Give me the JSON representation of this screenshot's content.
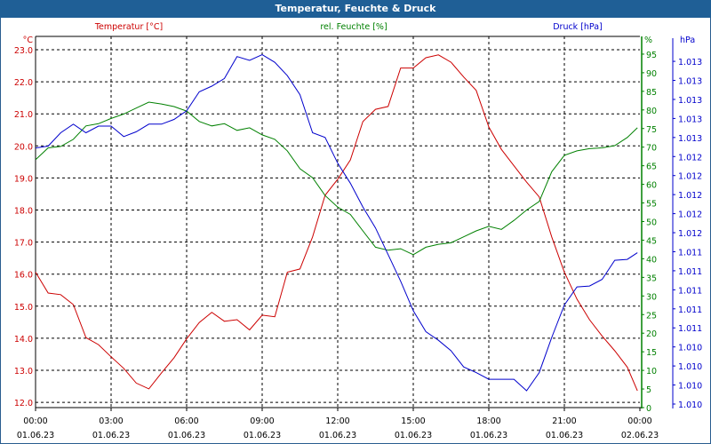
{
  "window_title": "Temperatur, Feuchte & Druck",
  "colors": {
    "temperature": "#cc0000",
    "humidity": "#008000",
    "pressure": "#0000cc",
    "title_bar": "#1f5f96"
  },
  "chart_data": {
    "type": "line",
    "title": "Temperatur, Feuchte & Druck",
    "grid": true,
    "x_hours": [
      0,
      0.5,
      1,
      1.5,
      2,
      2.5,
      3,
      3.5,
      4,
      4.5,
      5,
      5.5,
      6,
      6.5,
      7,
      7.5,
      8,
      8.5,
      9,
      9.5,
      10,
      10.5,
      11,
      11.5,
      12,
      12.5,
      13,
      13.5,
      14,
      14.5,
      15,
      15.5,
      16,
      16.5,
      17,
      17.5,
      18,
      18.5,
      19,
      19.5,
      20,
      20.5,
      21,
      21.5,
      22,
      22.5,
      23,
      23.5,
      23.9
    ],
    "x_ticks": [
      {
        "time": "00:00",
        "date": "01.06.23"
      },
      {
        "time": "03:00",
        "date": "01.06.23"
      },
      {
        "time": "06:00",
        "date": "01.06.23"
      },
      {
        "time": "09:00",
        "date": "01.06.23"
      },
      {
        "time": "12:00",
        "date": "01.06.23"
      },
      {
        "time": "15:00",
        "date": "01.06.23"
      },
      {
        "time": "18:00",
        "date": "01.06.23"
      },
      {
        "time": "21:00",
        "date": "01.06.23"
      },
      {
        "time": "00:00",
        "date": "02.06.23"
      }
    ],
    "series": [
      {
        "name": "Temperatur [°C]",
        "axis": "left",
        "unit": "°C",
        "ylim": [
          12.0,
          23.0
        ],
        "ticks": [
          "23.0",
          "22.0",
          "21.0",
          "20.0",
          "19.0",
          "18.0",
          "17.0",
          "16.0",
          "15.0",
          "14.0",
          "13.0",
          "12.0"
        ],
        "values": [
          16.06,
          15.41,
          15.36,
          15.05,
          14.02,
          13.8,
          13.42,
          13.06,
          12.6,
          12.42,
          12.92,
          13.39,
          13.98,
          14.49,
          14.81,
          14.53,
          14.58,
          14.26,
          14.72,
          14.67,
          16.06,
          16.16,
          17.16,
          18.46,
          18.96,
          19.56,
          20.76,
          21.14,
          21.23,
          22.43,
          22.43,
          22.75,
          22.84,
          22.61,
          22.15,
          21.73,
          20.59,
          19.89,
          19.38,
          18.87,
          18.41,
          17.16,
          16.06,
          15.22,
          14.58,
          14.07,
          13.61,
          13.1,
          12.36
        ]
      },
      {
        "name": "rel. Feuchte [%]",
        "axis": "right",
        "unit": "%",
        "ylim": [
          0,
          95
        ],
        "ticks": [
          "95",
          "90",
          "85",
          "80",
          "75",
          "70",
          "65",
          "60",
          "55",
          "50",
          "45",
          "40",
          "35",
          "30",
          "25",
          "20",
          "15",
          "10",
          "5",
          "0"
        ],
        "values": [
          66.6,
          69.8,
          70.2,
          72.1,
          75.7,
          76.3,
          77.7,
          78.9,
          80.5,
          82.1,
          81.6,
          80.9,
          79.7,
          76.9,
          75.7,
          76.3,
          74.5,
          75.2,
          73.3,
          72.1,
          69.0,
          64.2,
          61.8,
          57.0,
          53.9,
          51.9,
          47.5,
          43.1,
          42.3,
          42.7,
          41.1,
          43.1,
          43.9,
          44.3,
          45.9,
          47.5,
          48.7,
          47.9,
          50.3,
          53.1,
          55.4,
          63.4,
          67.8,
          69.0,
          69.6,
          69.8,
          70.4,
          72.6,
          75.2
        ]
      },
      {
        "name": "Druck [hPa]",
        "axis": "right2",
        "unit": "hPa",
        "ticks": [
          "1.013",
          "1.013",
          "1.013",
          "1.013",
          "1.013",
          "1.012",
          "1.012",
          "1.012",
          "1.012",
          "1.012",
          "1.011",
          "1.011",
          "1.011",
          "1.011",
          "1.011",
          "1.010",
          "1.010",
          "1.010",
          "1.010"
        ],
        "values": [
          1012.39,
          1012.41,
          1012.55,
          1012.64,
          1012.55,
          1012.62,
          1012.62,
          1012.51,
          1012.56,
          1012.64,
          1012.64,
          1012.69,
          1012.78,
          1012.98,
          1013.04,
          1013.12,
          1013.35,
          1013.31,
          1013.37,
          1013.29,
          1013.15,
          1012.95,
          1012.55,
          1012.5,
          1012.23,
          1012.02,
          1011.77,
          1011.55,
          1011.27,
          1010.99,
          1010.68,
          1010.46,
          1010.37,
          1010.26,
          1010.09,
          1010.03,
          1009.96,
          1009.96,
          1009.96,
          1009.84,
          1010.03,
          1010.4,
          1010.74,
          1010.93,
          1010.94,
          1011.01,
          1011.21,
          1011.22,
          1011.29
        ]
      }
    ]
  }
}
